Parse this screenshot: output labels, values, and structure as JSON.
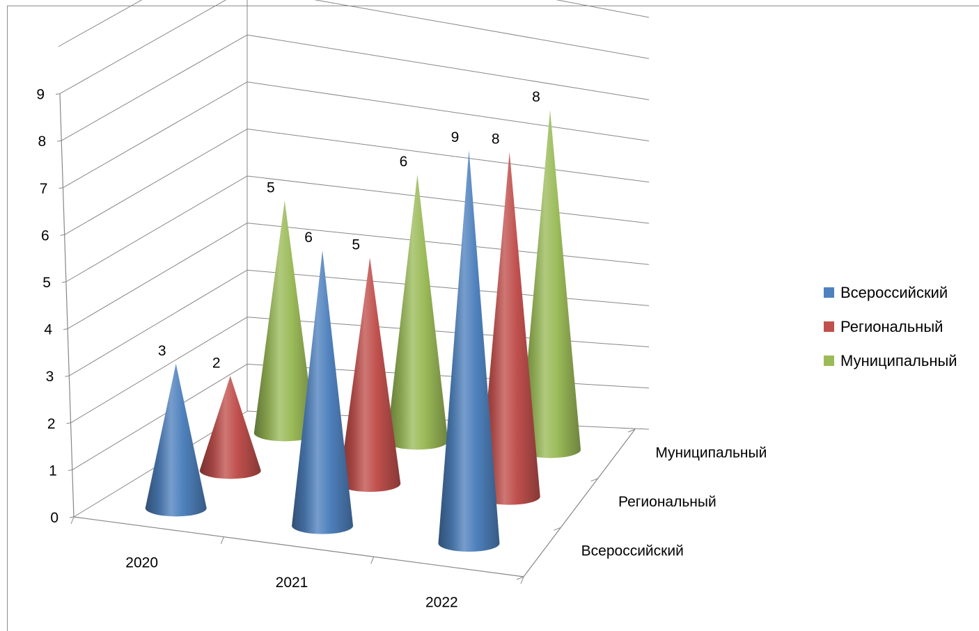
{
  "chart_data": {
    "type": "bar",
    "subtype": "3d-cone",
    "title": "",
    "categories": [
      "2020",
      "2021",
      "2022"
    ],
    "series": [
      {
        "name": "Всероссийский",
        "color": "#4f81bd",
        "values": [
          3,
          6,
          9
        ]
      },
      {
        "name": "Региональный",
        "color": "#c0504d",
        "values": [
          2,
          5,
          8
        ]
      },
      {
        "name": "Муниципальный",
        "color": "#9bbb59",
        "values": [
          5,
          6,
          8
        ]
      }
    ],
    "yticks": [
      "0",
      "1",
      "2",
      "3",
      "4",
      "5",
      "6",
      "7",
      "8",
      "9"
    ],
    "ylim": [
      0,
      10
    ],
    "grid": true,
    "legend": "right"
  }
}
